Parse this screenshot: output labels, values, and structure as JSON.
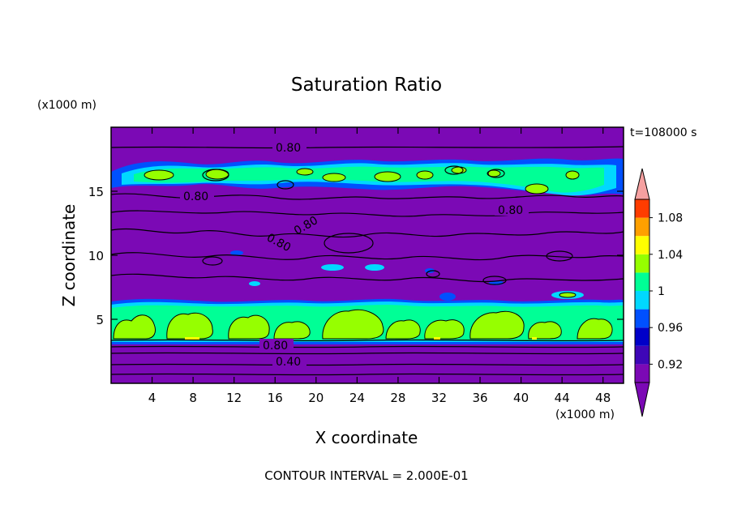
{
  "chart_data": {
    "type": "heatmap",
    "title": "Saturation Ratio",
    "xlabel": "X coordinate",
    "ylabel": "Z coordinate",
    "x_unit": "(x1000 m)",
    "y_unit": "(x1000 m)",
    "time_label": "t=108000 s",
    "footer": "CONTOUR INTERVAL = 2.000E-01",
    "xlim": [
      0,
      50
    ],
    "ylim": [
      0,
      20
    ],
    "x_ticks": [
      4,
      8,
      12,
      16,
      20,
      24,
      28,
      32,
      36,
      40,
      44,
      48
    ],
    "y_ticks": [
      5,
      10,
      15
    ],
    "colorbar": {
      "levels": [
        0.9,
        0.92,
        0.94,
        0.96,
        0.98,
        1.0,
        1.02,
        1.04,
        1.06,
        1.08,
        1.1
      ],
      "labels": [
        "0.92",
        "0.96",
        "1",
        "1.04",
        "1.08"
      ],
      "colors": [
        "#7b09b5",
        "#3e06b7",
        "#0000c8",
        "#0050ff",
        "#00d8ff",
        "#00ff96",
        "#96ff00",
        "#ffff00",
        "#ffa000",
        "#ff3c00",
        "#ff1414"
      ],
      "under_color": "#7b09b5",
      "over_color": "#f5a0a0"
    },
    "contour_labels": [
      "0.80",
      "0.80",
      "0.80",
      "0.80",
      "0.80",
      "0.80",
      "0.40"
    ],
    "regions": [
      {
        "name": "upper-saturated-layer",
        "z_range": [
          14.5,
          17.5
        ],
        "value_range": [
          0.96,
          1.02
        ]
      },
      {
        "name": "lower-saturated-layer",
        "z_range": [
          3.3,
          6.5
        ],
        "value_range": [
          0.96,
          1.04
        ]
      },
      {
        "name": "subsaturated-background",
        "value_range": [
          0.4,
          0.9
        ]
      }
    ]
  }
}
